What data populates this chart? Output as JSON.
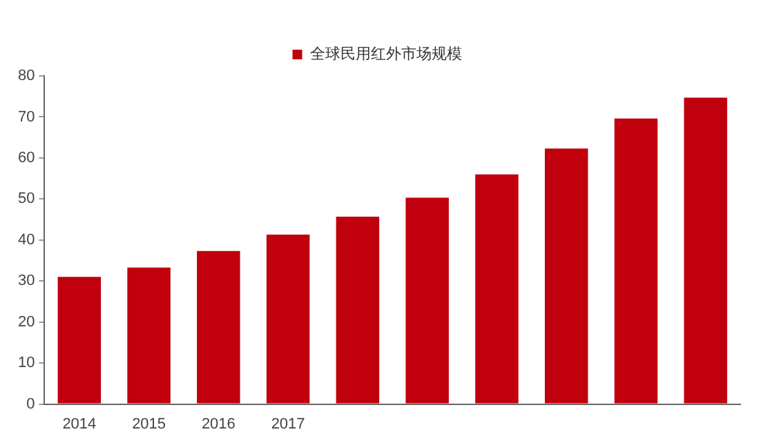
{
  "chart_data": {
    "type": "bar",
    "categories": [
      "2014",
      "2015",
      "2016",
      "2017",
      null,
      null,
      null,
      null,
      null,
      null
    ],
    "series": [
      {
        "name": "全球民用红外市场规模",
        "color": "#c0000c",
        "values": [
          31,
          33.3,
          37.3,
          41.3,
          45.7,
          50.3,
          56,
          62.3,
          69.6,
          74.7
        ]
      }
    ],
    "ylim": [
      0,
      80
    ],
    "yticks": [
      0,
      10,
      20,
      30,
      40,
      50,
      60,
      70,
      80
    ],
    "grid": false,
    "legend": "top"
  }
}
